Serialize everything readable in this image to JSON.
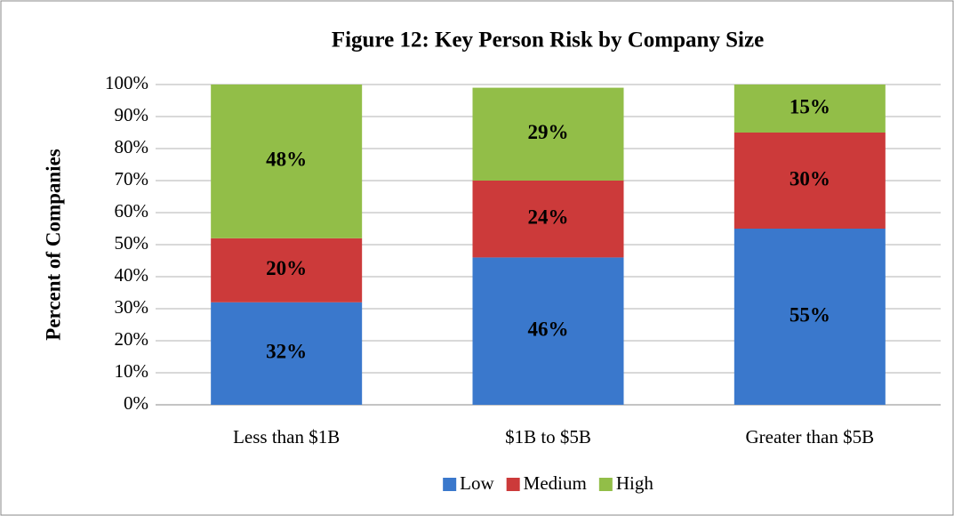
{
  "chart_data": {
    "type": "stacked_bar",
    "title": "Figure 12: Key Person Risk by Company Size",
    "ylabel": "Percent of Companies",
    "categories": [
      "Less than $1B",
      "$1B to $5B",
      "Greater than $5B"
    ],
    "series": [
      {
        "name": "Low",
        "color": "#3a78cc",
        "values": [
          32,
          46,
          55
        ],
        "value_labels": [
          "32%",
          "46%",
          "55%"
        ]
      },
      {
        "name": "Medium",
        "color": "#cc3a3a",
        "values": [
          20,
          24,
          30
        ],
        "value_labels": [
          "20%",
          "24%",
          "30%"
        ]
      },
      {
        "name": "High",
        "color": "#92be48",
        "values": [
          48,
          29,
          15
        ],
        "value_labels": [
          "48%",
          "29%",
          "15%"
        ]
      }
    ],
    "ylim": [
      0,
      100
    ],
    "yticks": [
      {
        "value": 0,
        "label": "0%"
      },
      {
        "value": 10,
        "label": "10%"
      },
      {
        "value": 20,
        "label": "20%"
      },
      {
        "value": 30,
        "label": "30%"
      },
      {
        "value": 40,
        "label": "40%"
      },
      {
        "value": 50,
        "label": "50%"
      },
      {
        "value": 60,
        "label": "60%"
      },
      {
        "value": 70,
        "label": "70%"
      },
      {
        "value": 80,
        "label": "80%"
      },
      {
        "value": 90,
        "label": "90%"
      },
      {
        "value": 100,
        "label": "100%"
      }
    ],
    "grid": true,
    "legend": "bottom"
  }
}
